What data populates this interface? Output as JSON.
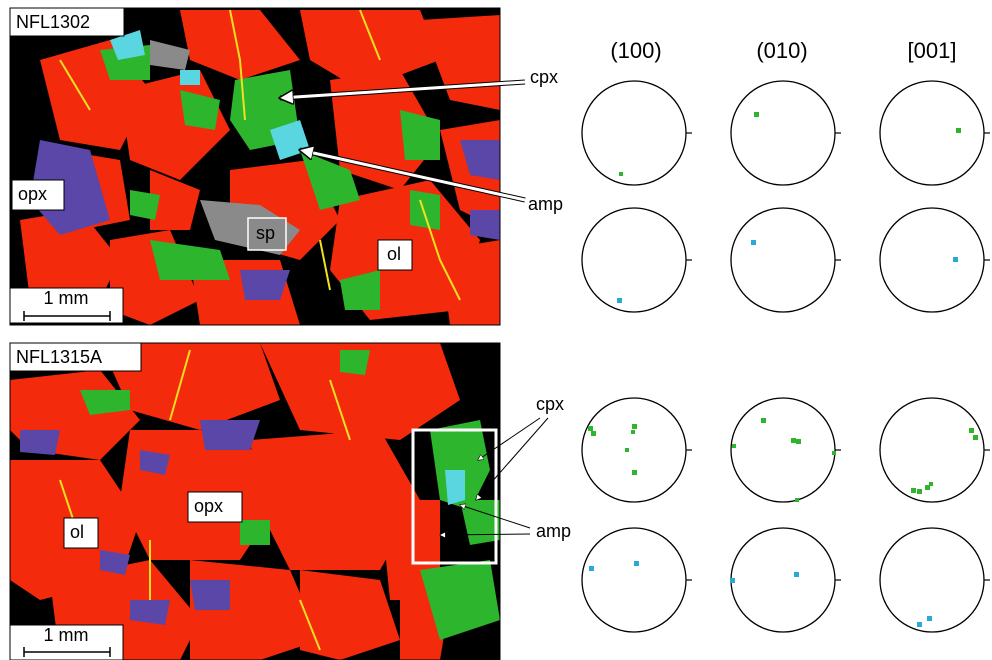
{
  "panels": [
    {
      "sample": "NFL1302",
      "scale_bar": "1 mm",
      "labels": {
        "cpx": "cpx",
        "amp": "amp",
        "opx": "opx",
        "sp": "sp",
        "ol": "ol"
      }
    },
    {
      "sample": "NFL1315A",
      "scale_bar": "1 mm",
      "labels": {
        "cpx": "cpx",
        "amp": "amp",
        "opx": "opx",
        "ol": "ol"
      }
    }
  ],
  "pole_figure_headers": [
    "(100)",
    "(010)",
    "[001]"
  ]
}
